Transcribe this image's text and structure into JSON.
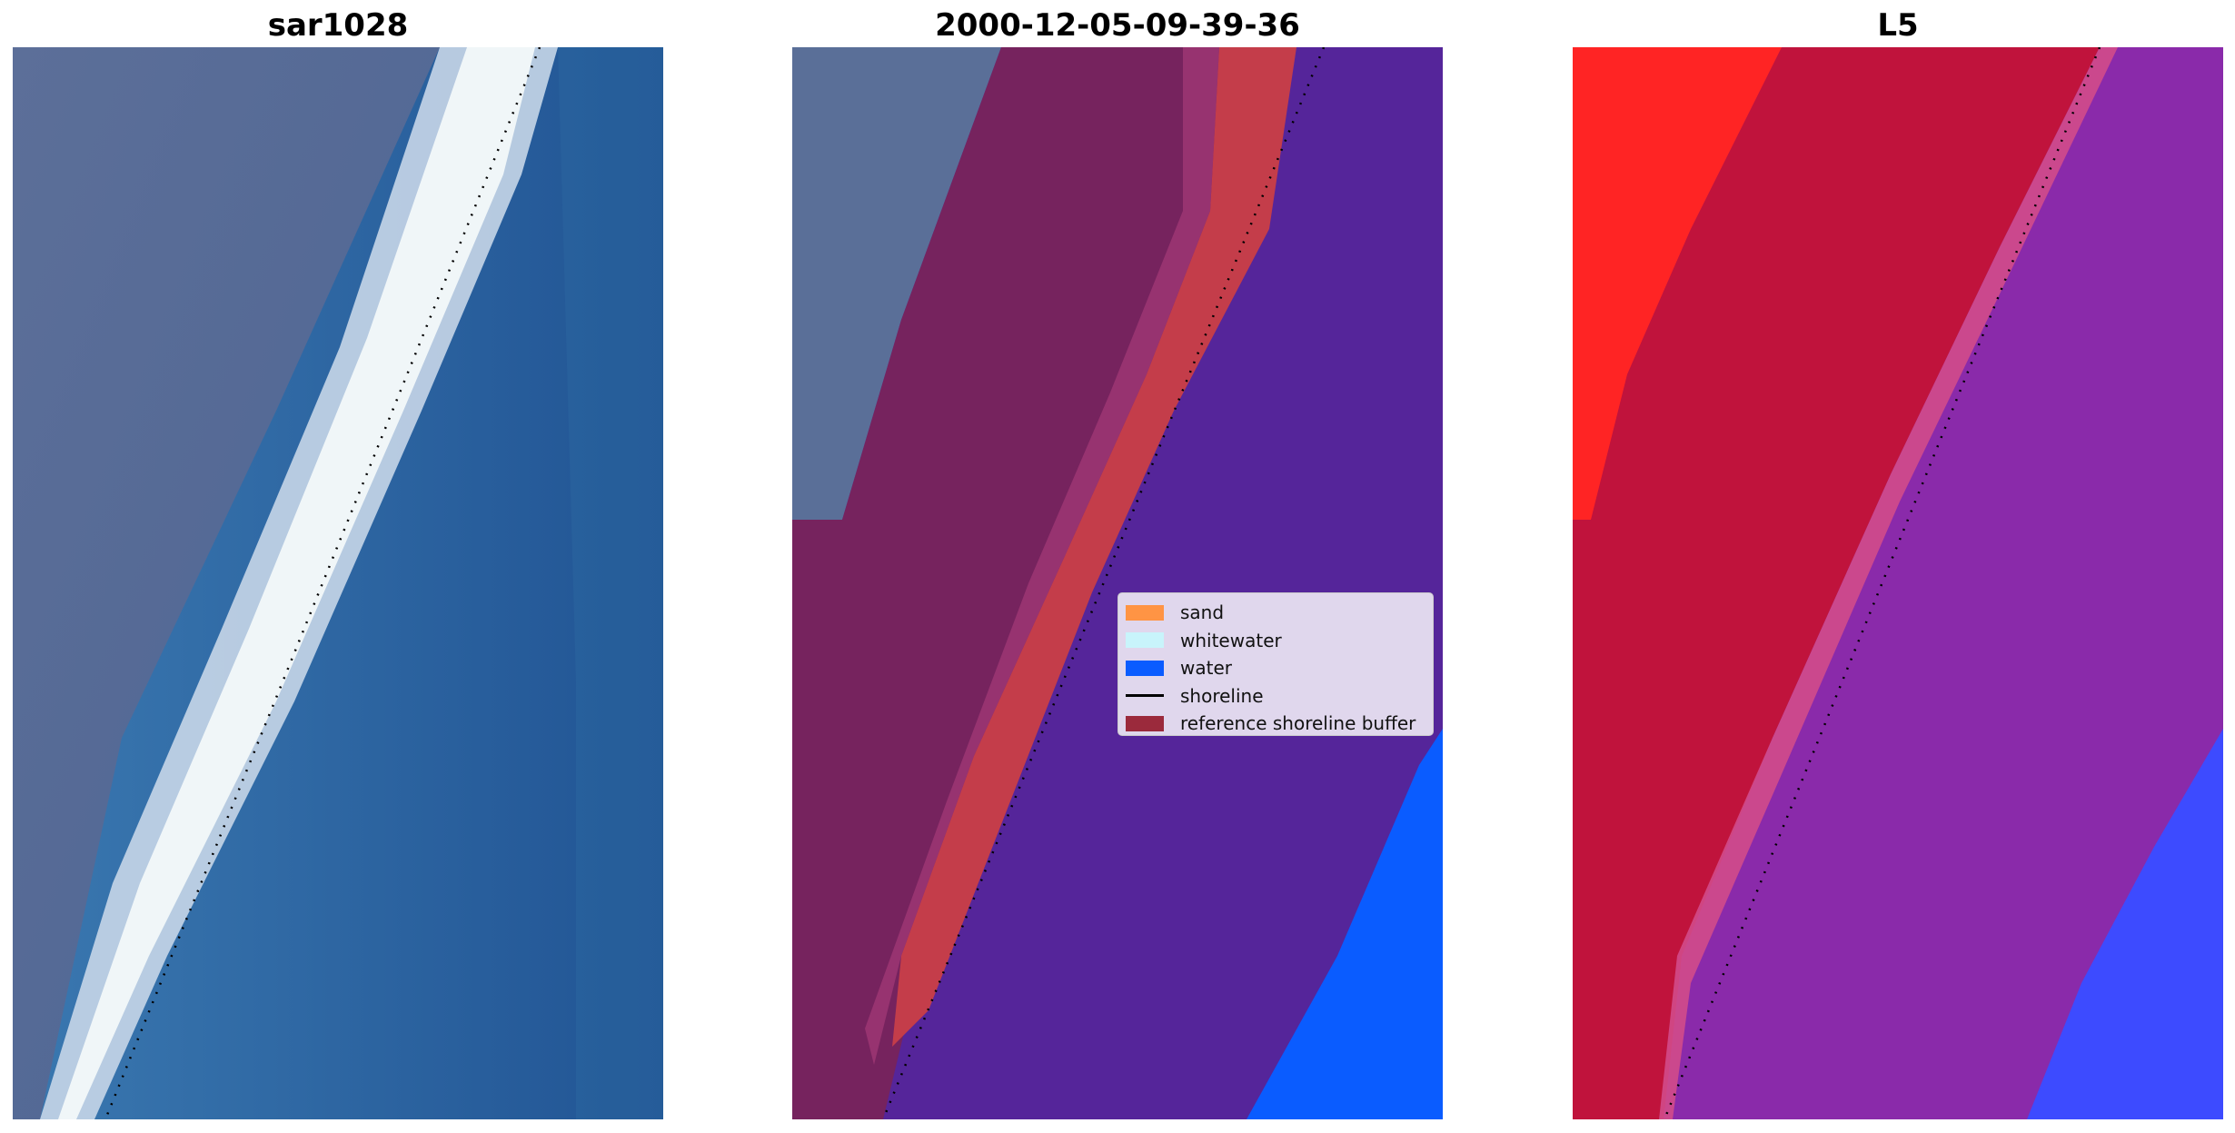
{
  "panels": [
    {
      "title": "sar1028"
    },
    {
      "title": "2000-12-05-09-39-36"
    },
    {
      "title": "L5"
    }
  ],
  "legend": {
    "items": [
      {
        "label": "sand",
        "color": "#ff9444"
      },
      {
        "label": "whitewater",
        "color": "#c8f4fb"
      },
      {
        "label": "water",
        "color": "#0a5cff"
      },
      {
        "label": "shoreline",
        "color": "#000000",
        "kind": "line"
      },
      {
        "label": "reference shoreline buffer",
        "color": "#9b2a3c"
      }
    ]
  },
  "colors": {
    "land_gray_blue": "#5a6f98",
    "sea_blue": "#2e6aa8",
    "surf_white": "#eef4f6",
    "buffer_maroon": "#76235e",
    "sand_red": "#c43d4a",
    "class_purple": "#55259a",
    "class_water": "#0a5cff",
    "l5_bright_red": "#ff2424",
    "l5_crimson": "#c0133c",
    "l5_violet": "#8a2aaa",
    "l5_blue": "#3d4bff"
  }
}
